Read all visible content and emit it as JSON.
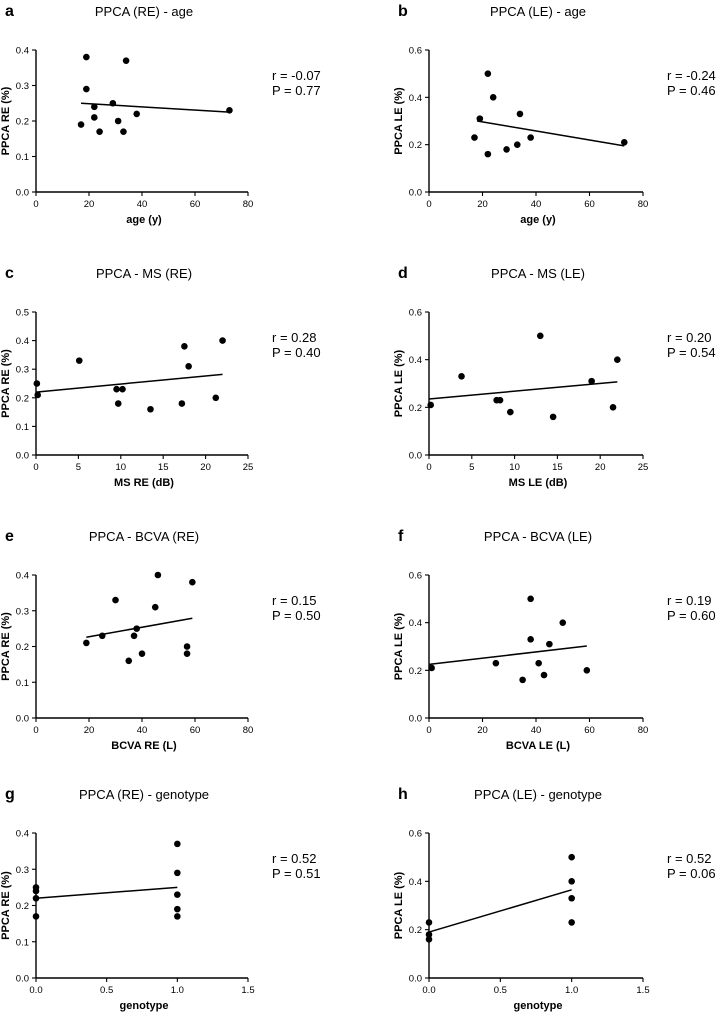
{
  "chart_data": [
    {
      "id": "a",
      "type": "scatter",
      "panel_letter": "a",
      "title": "PPCA (RE) - age",
      "xlabel": "age (y)",
      "ylabel": "PPCA RE (%)",
      "xlim": [
        0,
        80
      ],
      "ylim": [
        0,
        0.4
      ],
      "xticks": [
        0,
        20,
        40,
        60,
        80
      ],
      "yticks": [
        0.0,
        0.1,
        0.2,
        0.3,
        0.4
      ],
      "xtick_labels": [
        "0",
        "20",
        "40",
        "60",
        "80"
      ],
      "ytick_labels": [
        "0.0",
        "0.1",
        "0.2",
        "0.3",
        "0.4"
      ],
      "points": [
        [
          17,
          0.19
        ],
        [
          19,
          0.38
        ],
        [
          19,
          0.29
        ],
        [
          22,
          0.24
        ],
        [
          22,
          0.21
        ],
        [
          24,
          0.17
        ],
        [
          29,
          0.25
        ],
        [
          31,
          0.2
        ],
        [
          33,
          0.17
        ],
        [
          34,
          0.37
        ],
        [
          38,
          0.22
        ],
        [
          73,
          0.23
        ]
      ],
      "regression": [
        [
          17,
          0.25
        ],
        [
          73,
          0.225
        ]
      ],
      "r_text": "r = -0.07",
      "p_text": "P = 0.77"
    },
    {
      "id": "b",
      "type": "scatter",
      "panel_letter": "b",
      "title": "PPCA (LE) - age",
      "xlabel": "age (y)",
      "ylabel": "PPCA LE (%)",
      "xlim": [
        0,
        80
      ],
      "ylim": [
        0,
        0.6
      ],
      "xticks": [
        0,
        20,
        40,
        60,
        80
      ],
      "yticks": [
        0.0,
        0.2,
        0.4,
        0.6
      ],
      "xtick_labels": [
        "0",
        "20",
        "40",
        "60",
        "80"
      ],
      "ytick_labels": [
        "0.0",
        "0.2",
        "0.4",
        "0.6"
      ],
      "points": [
        [
          17,
          0.23
        ],
        [
          19,
          0.31
        ],
        [
          22,
          0.5
        ],
        [
          22,
          0.16
        ],
        [
          24,
          0.4
        ],
        [
          29,
          0.18
        ],
        [
          33,
          0.2
        ],
        [
          34,
          0.33
        ],
        [
          38,
          0.23
        ],
        [
          73,
          0.21
        ]
      ],
      "regression": [
        [
          18,
          0.3
        ],
        [
          73,
          0.195
        ]
      ],
      "r_text": "r = -0.24",
      "p_text": "P = 0.46"
    },
    {
      "id": "c",
      "type": "scatter",
      "panel_letter": "c",
      "title": "PPCA - MS (RE)",
      "xlabel": "MS RE (dB)",
      "ylabel": "PPCA RE (%)",
      "xlim": [
        0,
        25
      ],
      "ylim": [
        0,
        0.5
      ],
      "xticks": [
        0,
        5,
        10,
        15,
        20,
        25
      ],
      "yticks": [
        0.0,
        0.1,
        0.2,
        0.3,
        0.4,
        0.5
      ],
      "xtick_labels": [
        "0",
        "5",
        "10",
        "15",
        "20",
        "25"
      ],
      "ytick_labels": [
        "0.0",
        "0.1",
        "0.2",
        "0.3",
        "0.4",
        "0.5"
      ],
      "points": [
        [
          0.1,
          0.25
        ],
        [
          0.2,
          0.21
        ],
        [
          5.1,
          0.33
        ],
        [
          9.5,
          0.23
        ],
        [
          9.7,
          0.18
        ],
        [
          10.2,
          0.23
        ],
        [
          13.5,
          0.16
        ],
        [
          17.2,
          0.18
        ],
        [
          17.5,
          0.38
        ],
        [
          18,
          0.31
        ],
        [
          21.2,
          0.2
        ],
        [
          22,
          0.4
        ]
      ],
      "regression": [
        [
          0,
          0.22
        ],
        [
          22,
          0.282
        ]
      ],
      "r_text": "r = 0.28",
      "p_text": "P = 0.40"
    },
    {
      "id": "d",
      "type": "scatter",
      "panel_letter": "d",
      "title": "PPCA - MS (LE)",
      "xlabel": "MS LE (dB)",
      "ylabel": "PPCA LE (%)",
      "xlim": [
        0,
        25
      ],
      "ylim": [
        0,
        0.6
      ],
      "xticks": [
        0,
        5,
        10,
        15,
        20,
        25
      ],
      "yticks": [
        0.0,
        0.2,
        0.4,
        0.6
      ],
      "xtick_labels": [
        "0",
        "5",
        "10",
        "15",
        "20",
        "25"
      ],
      "ytick_labels": [
        "0.0",
        "0.2",
        "0.4",
        "0.6"
      ],
      "points": [
        [
          0.2,
          0.21
        ],
        [
          3.8,
          0.33
        ],
        [
          7.9,
          0.23
        ],
        [
          8.3,
          0.23
        ],
        [
          9.5,
          0.18
        ],
        [
          13,
          0.5
        ],
        [
          14.5,
          0.16
        ],
        [
          19,
          0.31
        ],
        [
          21.5,
          0.2
        ],
        [
          22,
          0.4
        ]
      ],
      "regression": [
        [
          0,
          0.235
        ],
        [
          22,
          0.307
        ]
      ],
      "r_text": "r = 0.20",
      "p_text": "P = 0.54"
    },
    {
      "id": "e",
      "type": "scatter",
      "panel_letter": "e",
      "title": "PPCA - BCVA (RE)",
      "xlabel": "BCVA RE (L)",
      "ylabel": "PPCA RE (%)",
      "xlim": [
        0,
        80
      ],
      "ylim": [
        0,
        0.4
      ],
      "xticks": [
        0,
        20,
        40,
        60,
        80
      ],
      "yticks": [
        0.0,
        0.1,
        0.2,
        0.3,
        0.4
      ],
      "xtick_labels": [
        "0",
        "20",
        "40",
        "60",
        "80"
      ],
      "ytick_labels": [
        "0.0",
        "0.1",
        "0.2",
        "0.3",
        "0.4"
      ],
      "points": [
        [
          19,
          0.21
        ],
        [
          25,
          0.23
        ],
        [
          30,
          0.33
        ],
        [
          35,
          0.16
        ],
        [
          37,
          0.23
        ],
        [
          38,
          0.25
        ],
        [
          40,
          0.18
        ],
        [
          45,
          0.31
        ],
        [
          46,
          0.4
        ],
        [
          57,
          0.2
        ],
        [
          57,
          0.18
        ],
        [
          59,
          0.38
        ]
      ],
      "regression": [
        [
          19,
          0.226
        ],
        [
          59,
          0.279
        ]
      ],
      "r_text": "r = 0.15",
      "p_text": "P = 0.50"
    },
    {
      "id": "f",
      "type": "scatter",
      "panel_letter": "f",
      "title": "PPCA - BCVA (LE)",
      "xlabel": "BCVA LE (L)",
      "ylabel": "PPCA LE (%)",
      "xlim": [
        0,
        80
      ],
      "ylim": [
        0,
        0.6
      ],
      "xticks": [
        0,
        20,
        40,
        60,
        80
      ],
      "yticks": [
        0.0,
        0.2,
        0.4,
        0.6
      ],
      "xtick_labels": [
        "0",
        "20",
        "40",
        "60",
        "80"
      ],
      "ytick_labels": [
        "0.0",
        "0.2",
        "0.4",
        "0.6"
      ],
      "points": [
        [
          1,
          0.21
        ],
        [
          25,
          0.23
        ],
        [
          35,
          0.16
        ],
        [
          38,
          0.5
        ],
        [
          38,
          0.33
        ],
        [
          41,
          0.23
        ],
        [
          43,
          0.18
        ],
        [
          45,
          0.31
        ],
        [
          50,
          0.4
        ],
        [
          59,
          0.2
        ]
      ],
      "regression": [
        [
          0,
          0.225
        ],
        [
          59,
          0.302
        ]
      ],
      "r_text": "r = 0.19",
      "p_text": "P = 0.60"
    },
    {
      "id": "g",
      "type": "scatter",
      "panel_letter": "g",
      "title": "PPCA (RE) - genotype",
      "xlabel": "genotype",
      "ylabel": "PPCA RE (%)",
      "xlim": [
        0,
        1.5
      ],
      "ylim": [
        0,
        0.4
      ],
      "xticks": [
        0,
        0.5,
        1.0,
        1.5
      ],
      "yticks": [
        0.0,
        0.1,
        0.2,
        0.3,
        0.4
      ],
      "xtick_labels": [
        "0.0",
        "0.5",
        "1.0",
        "1.5"
      ],
      "ytick_labels": [
        "0.0",
        "0.1",
        "0.2",
        "0.3",
        "0.4"
      ],
      "points": [
        [
          0,
          0.25
        ],
        [
          0,
          0.24
        ],
        [
          0,
          0.22
        ],
        [
          0,
          0.17
        ],
        [
          1,
          0.37
        ],
        [
          1,
          0.29
        ],
        [
          1,
          0.23
        ],
        [
          1,
          0.19
        ],
        [
          1,
          0.17
        ]
      ],
      "regression": [
        [
          0,
          0.22
        ],
        [
          1,
          0.25
        ]
      ],
      "r_text": "r = 0.52",
      "p_text": "P = 0.51"
    },
    {
      "id": "h",
      "type": "scatter",
      "panel_letter": "h",
      "title": "PPCA (LE) - genotype",
      "xlabel": "genotype",
      "ylabel": "PPCA LE (%)",
      "xlim": [
        0,
        1.5
      ],
      "ylim": [
        0,
        0.6
      ],
      "xticks": [
        0,
        0.5,
        1.0,
        1.5
      ],
      "yticks": [
        0.0,
        0.2,
        0.4,
        0.6
      ],
      "xtick_labels": [
        "0.0",
        "0.5",
        "1.0",
        "1.5"
      ],
      "ytick_labels": [
        "0.0",
        "0.2",
        "0.4",
        "0.6"
      ],
      "points": [
        [
          0,
          0.23
        ],
        [
          0,
          0.18
        ],
        [
          0,
          0.16
        ],
        [
          1,
          0.5
        ],
        [
          1,
          0.4
        ],
        [
          1,
          0.33
        ],
        [
          1,
          0.23
        ]
      ],
      "regression": [
        [
          0,
          0.19
        ],
        [
          1,
          0.365
        ]
      ],
      "r_text": "r = 0.52",
      "p_text": "P = 0.06"
    }
  ]
}
